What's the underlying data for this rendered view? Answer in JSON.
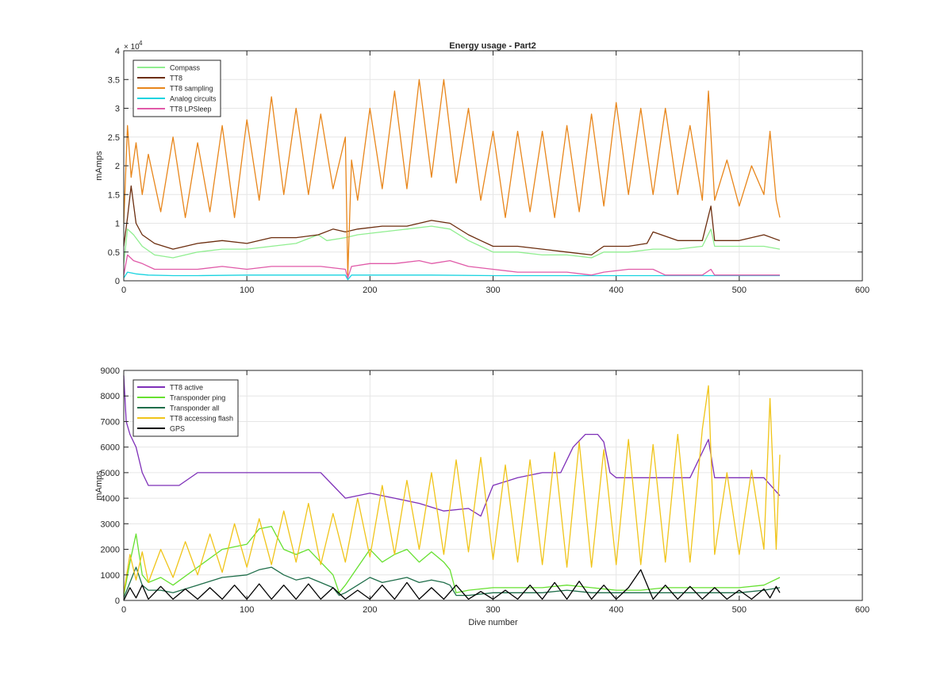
{
  "figure": {
    "title": "Energy usage - Part2"
  },
  "chart_data": [
    {
      "type": "line",
      "title": "Energy usage - Part2",
      "xlabel": "",
      "ylabel": "mAmps",
      "xlim": [
        0,
        600
      ],
      "ylim": [
        0,
        40000
      ],
      "x_ticks": [
        0,
        100,
        200,
        300,
        400,
        500,
        600
      ],
      "y_ticks": [
        0,
        5000,
        10000,
        15000,
        20000,
        25000,
        30000,
        35000,
        40000
      ],
      "y_tick_labels": [
        "0",
        "0.5",
        "1",
        "1.5",
        "2",
        "2.5",
        "3",
        "3.5",
        "4"
      ],
      "y_exponent_label": "× 10",
      "y_exponent_power": "4",
      "grid": true,
      "legend_position": "top-left",
      "series": [
        {
          "name": "Compass",
          "color": "#90ee90",
          "x": [
            0,
            3,
            8,
            15,
            25,
            40,
            60,
            80,
            100,
            120,
            140,
            158,
            165,
            180,
            190,
            210,
            230,
            250,
            265,
            280,
            290,
            300,
            320,
            340,
            360,
            380,
            390,
            410,
            430,
            450,
            470,
            477,
            480,
            500,
            520,
            533
          ],
          "y": [
            3000,
            9000,
            8000,
            6000,
            4500,
            4000,
            5000,
            5500,
            5500,
            6000,
            6500,
            8000,
            7000,
            7500,
            8000,
            8500,
            9000,
            9500,
            9000,
            7000,
            6000,
            5000,
            5000,
            4500,
            4500,
            4000,
            5000,
            5000,
            5500,
            5500,
            6000,
            9000,
            6000,
            6000,
            6000,
            5500
          ]
        },
        {
          "name": "TT8",
          "color": "#6b2d0e",
          "x": [
            0,
            3,
            6,
            10,
            15,
            25,
            40,
            60,
            80,
            100,
            120,
            140,
            158,
            170,
            180,
            190,
            210,
            230,
            250,
            265,
            280,
            290,
            300,
            320,
            340,
            360,
            380,
            390,
            410,
            425,
            430,
            450,
            470,
            477,
            480,
            500,
            520,
            533
          ],
          "y": [
            6000,
            11000,
            16500,
            10000,
            8000,
            6500,
            5500,
            6500,
            7000,
            6500,
            7500,
            7500,
            8000,
            9000,
            8500,
            9000,
            9500,
            9500,
            10500,
            10000,
            8000,
            7000,
            6000,
            6000,
            5500,
            5000,
            4500,
            6000,
            6000,
            6500,
            8500,
            7000,
            7000,
            13000,
            7000,
            7000,
            8000,
            7000
          ]
        },
        {
          "name": "TT8 sampling",
          "color": "#e8861b",
          "x": [
            0,
            3,
            6,
            10,
            15,
            20,
            30,
            40,
            50,
            60,
            70,
            80,
            90,
            100,
            110,
            120,
            130,
            140,
            150,
            160,
            170,
            180,
            182,
            185,
            190,
            200,
            210,
            220,
            230,
            240,
            250,
            260,
            270,
            280,
            290,
            300,
            310,
            320,
            330,
            340,
            350,
            360,
            370,
            380,
            390,
            400,
            410,
            420,
            430,
            440,
            450,
            460,
            470,
            475,
            480,
            490,
            500,
            510,
            520,
            525,
            530,
            533
          ],
          "y": [
            10000,
            27000,
            18000,
            24000,
            15000,
            22000,
            12000,
            25000,
            11000,
            24000,
            12000,
            27000,
            11000,
            28000,
            14000,
            32000,
            15000,
            30000,
            15000,
            29000,
            16000,
            25000,
            1000,
            21000,
            14000,
            30000,
            16000,
            33000,
            16000,
            35000,
            18000,
            35000,
            17000,
            30000,
            14000,
            26000,
            11000,
            26000,
            12000,
            26000,
            11000,
            27000,
            12000,
            29000,
            13000,
            31000,
            15000,
            30000,
            15000,
            30000,
            15000,
            27000,
            14000,
            33000,
            14000,
            21000,
            13000,
            20000,
            15000,
            26000,
            14000,
            11000
          ]
        },
        {
          "name": "Analog circuits",
          "color": "#19d3e0",
          "x": [
            0,
            3,
            10,
            20,
            40,
            60,
            100,
            150,
            180,
            182,
            185,
            200,
            250,
            300,
            350,
            400,
            450,
            480,
            533
          ],
          "y": [
            500,
            1500,
            1200,
            1000,
            900,
            900,
            1000,
            1000,
            1000,
            200,
            1000,
            1000,
            1000,
            900,
            900,
            900,
            900,
            900,
            900
          ]
        },
        {
          "name": "TT8 LPSleep",
          "color": "#e05aa8",
          "x": [
            0,
            3,
            8,
            15,
            25,
            40,
            60,
            80,
            100,
            120,
            140,
            160,
            180,
            182,
            185,
            200,
            220,
            240,
            250,
            265,
            280,
            300,
            320,
            340,
            360,
            380,
            390,
            410,
            430,
            440,
            470,
            477,
            480,
            500,
            533
          ],
          "y": [
            1000,
            4500,
            3500,
            3000,
            2000,
            2000,
            2000,
            2500,
            2000,
            2500,
            2500,
            2500,
            2000,
            500,
            2500,
            3000,
            3000,
            3500,
            3000,
            3500,
            2500,
            2000,
            1500,
            1500,
            1500,
            1000,
            1500,
            2000,
            2000,
            1000,
            1000,
            2000,
            1000,
            1000,
            1000
          ]
        }
      ]
    },
    {
      "type": "line",
      "title": "",
      "xlabel": "Dive number",
      "ylabel": "mAmps",
      "xlim": [
        0,
        600
      ],
      "ylim": [
        0,
        9000
      ],
      "x_ticks": [
        0,
        100,
        200,
        300,
        400,
        500,
        600
      ],
      "y_ticks": [
        0,
        1000,
        2000,
        3000,
        4000,
        5000,
        6000,
        7000,
        8000,
        9000
      ],
      "y_tick_labels": [
        "0",
        "1000",
        "2000",
        "3000",
        "4000",
        "5000",
        "6000",
        "7000",
        "8000",
        "9000"
      ],
      "grid": true,
      "legend_position": "top-left",
      "series": [
        {
          "name": "TT8 active",
          "color": "#7e2fb8",
          "x": [
            0,
            2,
            5,
            10,
            15,
            20,
            30,
            45,
            60,
            80,
            100,
            120,
            140,
            160,
            170,
            180,
            200,
            220,
            240,
            260,
            280,
            290,
            300,
            320,
            340,
            355,
            365,
            375,
            385,
            390,
            395,
            400,
            420,
            440,
            460,
            475,
            480,
            500,
            520,
            533
          ],
          "y": [
            8800,
            7000,
            6500,
            6000,
            5000,
            4500,
            4500,
            4500,
            5000,
            5000,
            5000,
            5000,
            5000,
            5000,
            4500,
            4000,
            4200,
            4000,
            3800,
            3500,
            3600,
            3300,
            4500,
            4800,
            5000,
            5000,
            6000,
            6500,
            6500,
            6200,
            5000,
            4800,
            4800,
            4800,
            4800,
            6300,
            4800,
            4800,
            4800,
            4100
          ]
        },
        {
          "name": "Transponder ping",
          "color": "#66e030",
          "x": [
            0,
            5,
            10,
            15,
            20,
            30,
            40,
            60,
            80,
            100,
            110,
            120,
            130,
            140,
            150,
            160,
            170,
            175,
            180,
            190,
            200,
            210,
            220,
            230,
            240,
            250,
            260,
            265,
            270,
            280,
            300,
            320,
            340,
            360,
            380,
            400,
            420,
            440,
            460,
            480,
            500,
            520,
            533
          ],
          "y": [
            200,
            1500,
            2600,
            1000,
            700,
            900,
            600,
            1300,
            2000,
            2200,
            2800,
            2900,
            2000,
            1800,
            2000,
            1500,
            1000,
            300,
            600,
            1300,
            2000,
            1500,
            1800,
            2000,
            1500,
            1900,
            1500,
            1200,
            300,
            400,
            500,
            500,
            500,
            600,
            500,
            400,
            400,
            500,
            500,
            500,
            500,
            600,
            900
          ]
        },
        {
          "name": "Transponder all",
          "color": "#1f6e4a",
          "x": [
            0,
            5,
            10,
            15,
            20,
            30,
            40,
            60,
            80,
            100,
            110,
            120,
            130,
            140,
            150,
            160,
            170,
            175,
            180,
            190,
            200,
            210,
            220,
            230,
            240,
            250,
            260,
            265,
            270,
            280,
            300,
            320,
            340,
            360,
            380,
            400,
            420,
            440,
            460,
            480,
            500,
            520,
            533
          ],
          "y": [
            100,
            700,
            1300,
            600,
            400,
            400,
            300,
            600,
            900,
            1000,
            1200,
            1300,
            1000,
            800,
            900,
            700,
            500,
            200,
            300,
            600,
            900,
            700,
            800,
            900,
            700,
            800,
            700,
            600,
            200,
            200,
            300,
            300,
            300,
            400,
            300,
            300,
            300,
            300,
            300,
            300,
            300,
            400,
            500
          ]
        },
        {
          "name": "TT8 accessing flash",
          "color": "#f0c419",
          "x": [
            0,
            5,
            10,
            15,
            20,
            30,
            40,
            50,
            60,
            70,
            80,
            90,
            100,
            110,
            120,
            130,
            140,
            150,
            160,
            170,
            180,
            190,
            200,
            210,
            220,
            230,
            240,
            250,
            260,
            270,
            280,
            290,
            300,
            310,
            320,
            330,
            340,
            350,
            360,
            370,
            380,
            390,
            400,
            410,
            420,
            430,
            440,
            450,
            460,
            470,
            475,
            480,
            490,
            500,
            510,
            520,
            525,
            530,
            533
          ],
          "y": [
            300,
            1800,
            800,
            1900,
            700,
            2000,
            900,
            2300,
            1000,
            2600,
            1100,
            3000,
            1300,
            3200,
            1400,
            3500,
            1500,
            3800,
            1400,
            3400,
            1500,
            4000,
            1700,
            4500,
            1800,
            4700,
            2000,
            5000,
            1800,
            5500,
            1900,
            5600,
            1600,
            5300,
            1500,
            5500,
            1400,
            5800,
            1300,
            6200,
            1300,
            5900,
            1400,
            6300,
            1400,
            6100,
            1500,
            6500,
            1500,
            6700,
            8400,
            1800,
            5000,
            1800,
            5100,
            2000,
            7900,
            2000,
            5700
          ]
        },
        {
          "name": "GPS",
          "color": "#000000",
          "x": [
            0,
            5,
            10,
            15,
            20,
            30,
            40,
            50,
            60,
            70,
            80,
            90,
            100,
            110,
            120,
            130,
            140,
            150,
            160,
            170,
            180,
            190,
            200,
            210,
            220,
            230,
            240,
            250,
            260,
            270,
            280,
            290,
            300,
            310,
            320,
            330,
            340,
            350,
            360,
            370,
            380,
            390,
            400,
            410,
            420,
            430,
            440,
            450,
            460,
            470,
            480,
            490,
            500,
            510,
            520,
            525,
            530,
            533
          ],
          "y": [
            0,
            500,
            100,
            600,
            50,
            550,
            50,
            450,
            50,
            500,
            50,
            600,
            50,
            650,
            50,
            600,
            50,
            650,
            50,
            500,
            50,
            400,
            50,
            600,
            50,
            700,
            50,
            500,
            50,
            600,
            50,
            350,
            50,
            400,
            50,
            600,
            50,
            700,
            50,
            750,
            50,
            600,
            50,
            500,
            1200,
            50,
            600,
            50,
            550,
            50,
            500,
            50,
            400,
            50,
            450,
            100,
            550,
            300
          ]
        }
      ]
    }
  ]
}
